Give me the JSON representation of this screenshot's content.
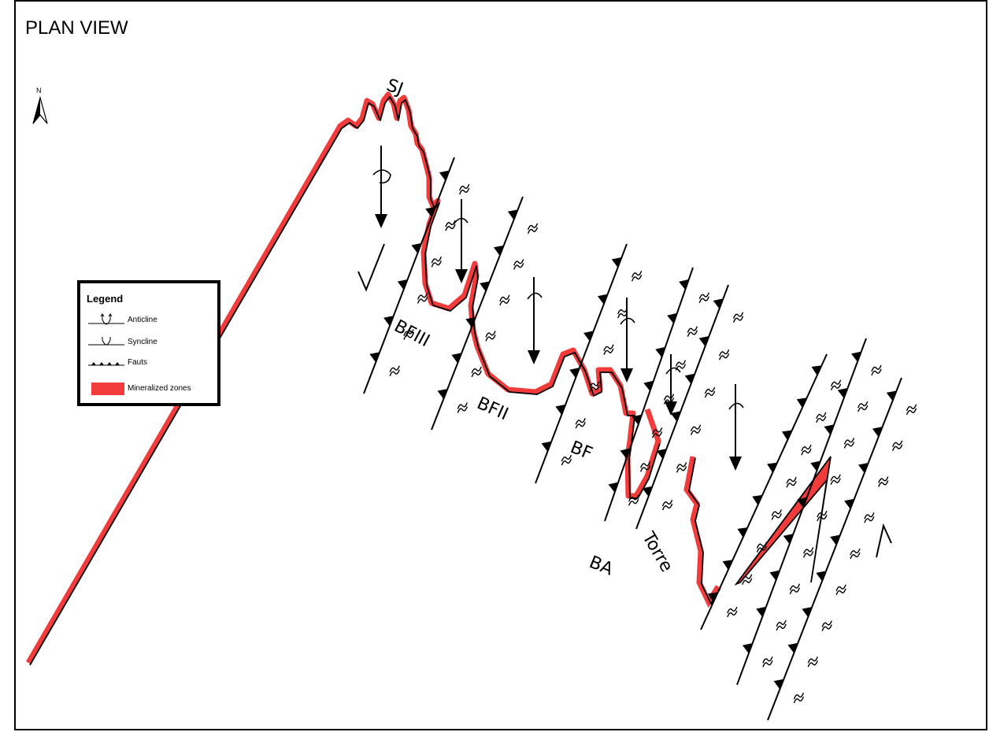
{
  "title": "PLAN VIEW",
  "north_label": "N",
  "legend": {
    "title": "Legend",
    "items": [
      {
        "label": "Anticline",
        "icon": "anticline-symbol"
      },
      {
        "label": "Syncline",
        "icon": "syncline-symbol"
      },
      {
        "label": "Fauts",
        "icon": "fault-symbol"
      },
      {
        "label": "Mineralized zones",
        "icon": "mineralized-swatch"
      }
    ]
  },
  "zone_labels": {
    "sj": "SJ",
    "bfiii": "BFIII",
    "bfii": "BFII",
    "bf": "BF",
    "ba": "BA",
    "torre": "Torre"
  },
  "colors": {
    "mineralized": "#f23c3c",
    "line": "#000000"
  }
}
